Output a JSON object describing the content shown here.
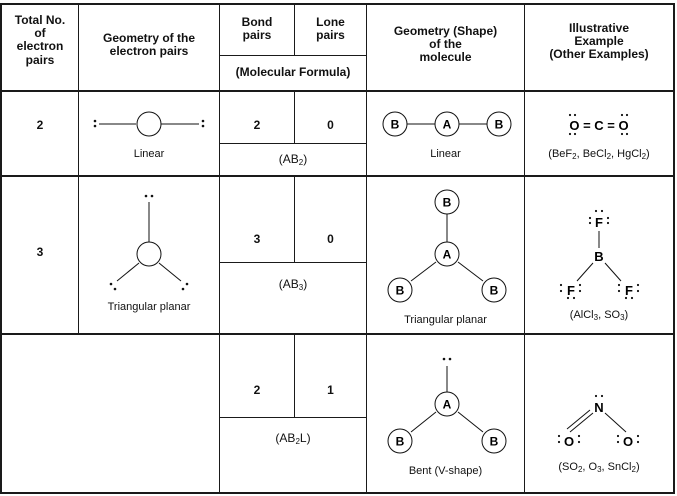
{
  "header": {
    "total_pairs": [
      "Total No.",
      "of",
      "electron",
      "pairs"
    ],
    "electron_geometry": [
      "Geometry of the",
      "electron pairs"
    ],
    "bond_pairs": [
      "Bond",
      "pairs"
    ],
    "lone_pairs": [
      "Lone",
      "pairs"
    ],
    "molecular_formula": "(Molecular Formula)",
    "molecule_shape": [
      "Geometry (Shape)",
      "of the",
      "molecule"
    ],
    "example": [
      "Illustrative",
      "Example",
      "(Other Examples)"
    ]
  },
  "rows": [
    {
      "total_pairs": "2",
      "electron_geometry": "Linear",
      "bond_pairs": "2",
      "lone_pairs": "0",
      "formula": {
        "base": "(AB",
        "sub": "2",
        "tail": ")"
      },
      "shape": "Linear",
      "example_formula": "O = C = O",
      "other_examples": {
        "parts": [
          "(BeF",
          "2",
          ", BeCl",
          "2",
          ", HgCl",
          "2",
          ")"
        ]
      }
    },
    {
      "total_pairs": "3",
      "electron_geometry": "Triangular planar",
      "bond_pairs": "3",
      "lone_pairs": "0",
      "formula": {
        "base": "(AB",
        "sub": "3",
        "tail": ")"
      },
      "shape": "Triangular planar",
      "example_atoms": {
        "center": "B",
        "ligand": "F"
      },
      "other_examples": {
        "parts": [
          "(AlCl",
          "3",
          ", SO",
          "3",
          ")"
        ]
      }
    },
    {
      "total_pairs": "",
      "electron_geometry": "",
      "bond_pairs": "2",
      "lone_pairs": "1",
      "formula": {
        "base": "(AB",
        "sub": "2",
        "tail": "L)"
      },
      "shape": "Bent (V-shape)",
      "example_atoms": {
        "center": "N",
        "ligand": "O"
      },
      "other_examples": {
        "parts": [
          "(SO",
          "2",
          ", O",
          "3",
          ", SnCl",
          "2",
          ")"
        ]
      }
    }
  ],
  "atoms": {
    "central": "A",
    "bonded": "B"
  }
}
